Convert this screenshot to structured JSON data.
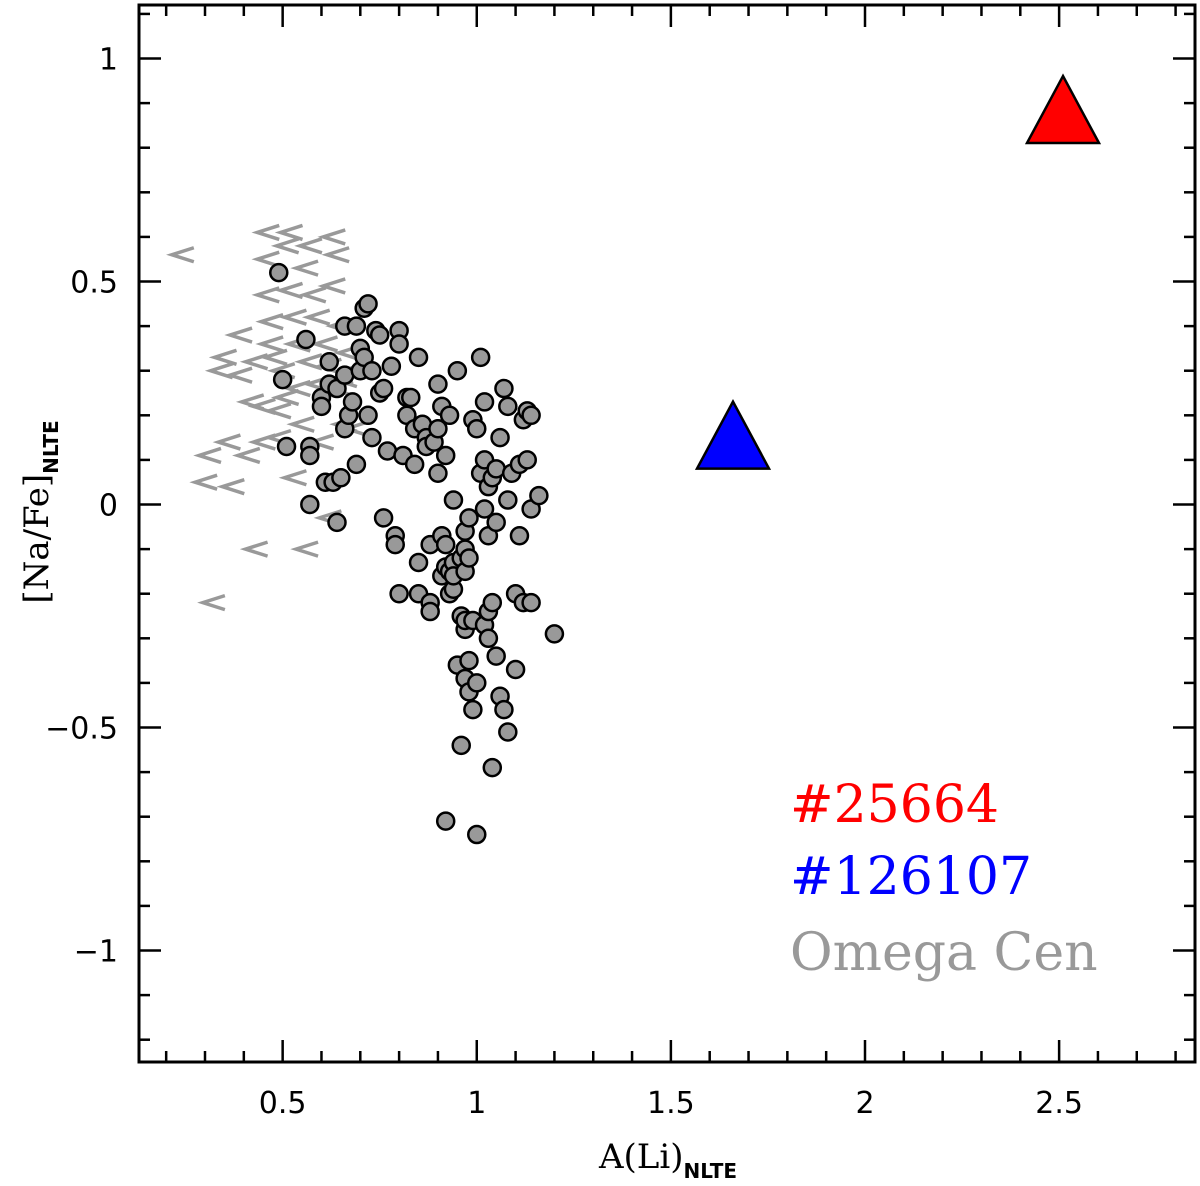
{
  "chart_data": {
    "type": "scatter",
    "title": "",
    "xlabel": "A(Li)",
    "xlabel_subscript": "NLTE",
    "ylabel": "[Na/Fe]",
    "ylabel_subscript": "NLTE",
    "xlim": [
      0.13,
      2.85
    ],
    "ylim": [
      -1.25,
      1.12
    ],
    "x_ticks": [
      0.5,
      1,
      1.5,
      2,
      2.5
    ],
    "x_tick_labels": [
      "0.5",
      "1",
      "1.5",
      "2",
      "2.5"
    ],
    "y_ticks": [
      1,
      0.5,
      0,
      -0.5,
      -1
    ],
    "y_tick_labels": [
      "1",
      "0.5",
      "0",
      "−0.5",
      "−1"
    ],
    "grid": false,
    "legend_placement": "bottom-right",
    "colors": {
      "star_25664": "#ff0000",
      "star_126107": "#0000ff",
      "omega_cen": "#999999",
      "circle_fill": "#999999"
    },
    "series": [
      {
        "name": "Omega Cen",
        "marker": "circle",
        "points": [
          [
            0.49,
            0.52
          ],
          [
            0.5,
            0.28
          ],
          [
            0.51,
            0.13
          ],
          [
            0.56,
            0.37
          ],
          [
            0.57,
            0.13
          ],
          [
            0.57,
            0.11
          ],
          [
            0.57,
            0.0
          ],
          [
            0.6,
            0.24
          ],
          [
            0.6,
            0.22
          ],
          [
            0.61,
            0.05
          ],
          [
            0.62,
            0.32
          ],
          [
            0.62,
            0.27
          ],
          [
            0.63,
            0.05
          ],
          [
            0.64,
            -0.04
          ],
          [
            0.64,
            0.26
          ],
          [
            0.65,
            0.06
          ],
          [
            0.66,
            0.4
          ],
          [
            0.66,
            0.29
          ],
          [
            0.66,
            0.17
          ],
          [
            0.67,
            0.2
          ],
          [
            0.68,
            0.23
          ],
          [
            0.69,
            0.09
          ],
          [
            0.69,
            0.4
          ],
          [
            0.7,
            0.3
          ],
          [
            0.7,
            0.35
          ],
          [
            0.71,
            0.33
          ],
          [
            0.71,
            0.44
          ],
          [
            0.72,
            0.45
          ],
          [
            0.72,
            0.2
          ],
          [
            0.73,
            0.15
          ],
          [
            0.73,
            0.3
          ],
          [
            0.74,
            0.39
          ],
          [
            0.75,
            0.38
          ],
          [
            0.75,
            0.25
          ],
          [
            0.76,
            -0.03
          ],
          [
            0.76,
            0.26
          ],
          [
            0.77,
            0.12
          ],
          [
            0.78,
            0.31
          ],
          [
            0.79,
            -0.07
          ],
          [
            0.79,
            -0.09
          ],
          [
            0.8,
            0.39
          ],
          [
            0.8,
            0.36
          ],
          [
            0.8,
            -0.2
          ],
          [
            0.81,
            0.11
          ],
          [
            0.82,
            0.24
          ],
          [
            0.82,
            0.2
          ],
          [
            0.83,
            0.24
          ],
          [
            0.84,
            0.09
          ],
          [
            0.84,
            0.17
          ],
          [
            0.85,
            -0.13
          ],
          [
            0.85,
            0.33
          ],
          [
            0.85,
            -0.2
          ],
          [
            0.86,
            0.18
          ],
          [
            0.87,
            0.15
          ],
          [
            0.87,
            0.13
          ],
          [
            0.88,
            -0.22
          ],
          [
            0.88,
            -0.24
          ],
          [
            0.88,
            -0.09
          ],
          [
            0.89,
            0.14
          ],
          [
            0.9,
            0.17
          ],
          [
            0.9,
            0.27
          ],
          [
            0.9,
            0.07
          ],
          [
            0.91,
            0.22
          ],
          [
            0.91,
            -0.16
          ],
          [
            0.91,
            -0.07
          ],
          [
            0.92,
            -0.09
          ],
          [
            0.92,
            -0.14
          ],
          [
            0.92,
            0.11
          ],
          [
            0.93,
            0.2
          ],
          [
            0.93,
            -0.15
          ],
          [
            0.93,
            -0.2
          ],
          [
            0.94,
            -0.19
          ],
          [
            0.94,
            0.01
          ],
          [
            0.94,
            -0.13
          ],
          [
            0.94,
            -0.16
          ],
          [
            0.95,
            -0.36
          ],
          [
            0.95,
            0.3
          ],
          [
            0.96,
            -0.54
          ],
          [
            0.96,
            -0.12
          ],
          [
            0.96,
            -0.25
          ],
          [
            0.97,
            -0.39
          ],
          [
            0.97,
            -0.28
          ],
          [
            0.97,
            -0.26
          ],
          [
            0.97,
            -0.1
          ],
          [
            0.97,
            -0.06
          ],
          [
            0.97,
            -0.15
          ],
          [
            0.98,
            -0.42
          ],
          [
            0.98,
            -0.35
          ],
          [
            0.98,
            -0.03
          ],
          [
            0.98,
            -0.12
          ],
          [
            0.99,
            -0.46
          ],
          [
            0.99,
            -0.26
          ],
          [
            0.99,
            0.19
          ],
          [
            1.0,
            0.17
          ],
          [
            1.0,
            -0.4
          ],
          [
            1.01,
            0.07
          ],
          [
            1.01,
            0.33
          ],
          [
            1.02,
            -0.27
          ],
          [
            1.02,
            -0.01
          ],
          [
            1.02,
            0.23
          ],
          [
            1.02,
            0.1
          ],
          [
            1.03,
            -0.07
          ],
          [
            1.03,
            -0.3
          ],
          [
            1.03,
            0.04
          ],
          [
            1.03,
            -0.24
          ],
          [
            1.04,
            -0.59
          ],
          [
            1.04,
            0.06
          ],
          [
            1.04,
            -0.22
          ],
          [
            1.05,
            -0.04
          ],
          [
            1.05,
            -0.34
          ],
          [
            1.05,
            0.08
          ],
          [
            1.06,
            -0.43
          ],
          [
            1.06,
            0.15
          ],
          [
            1.07,
            -0.46
          ],
          [
            1.07,
            0.26
          ],
          [
            1.08,
            0.22
          ],
          [
            1.08,
            -0.51
          ],
          [
            1.08,
            0.01
          ],
          [
            1.09,
            0.07
          ],
          [
            1.1,
            -0.37
          ],
          [
            1.1,
            -0.2
          ],
          [
            1.11,
            0.09
          ],
          [
            1.11,
            -0.07
          ],
          [
            1.12,
            -0.22
          ],
          [
            1.12,
            0.19
          ],
          [
            1.13,
            0.21
          ],
          [
            1.13,
            0.1
          ],
          [
            1.14,
            -0.22
          ],
          [
            1.14,
            0.2
          ],
          [
            1.14,
            -0.01
          ],
          [
            1.16,
            0.02
          ],
          [
            1.2,
            -0.29
          ],
          [
            0.92,
            -0.71
          ],
          [
            1.0,
            -0.74
          ]
        ]
      },
      {
        "name": "Omega Cen (upper limits)",
        "marker": "left-arrow",
        "points": [
          [
            0.23,
            0.56
          ],
          [
            0.31,
            -0.22
          ],
          [
            0.3,
            0.11
          ],
          [
            0.29,
            0.05
          ],
          [
            0.33,
            0.3
          ],
          [
            0.34,
            0.33
          ],
          [
            0.35,
            0.14
          ],
          [
            0.36,
            0.04
          ],
          [
            0.38,
            0.29
          ],
          [
            0.38,
            0.38
          ],
          [
            0.4,
            0.11
          ],
          [
            0.41,
            0.23
          ],
          [
            0.42,
            0.32
          ],
          [
            0.42,
            -0.1
          ],
          [
            0.44,
            0.22
          ],
          [
            0.44,
            0.14
          ],
          [
            0.45,
            0.47
          ],
          [
            0.45,
            0.55
          ],
          [
            0.45,
            0.61
          ],
          [
            0.46,
            0.36
          ],
          [
            0.46,
            0.41
          ],
          [
            0.47,
            0.33
          ],
          [
            0.48,
            0.15
          ],
          [
            0.48,
            0.21
          ],
          [
            0.49,
            0.3
          ],
          [
            0.5,
            0.58
          ],
          [
            0.5,
            0.24
          ],
          [
            0.51,
            0.61
          ],
          [
            0.51,
            0.48
          ],
          [
            0.52,
            0.06
          ],
          [
            0.52,
            0.42
          ],
          [
            0.53,
            0.36
          ],
          [
            0.53,
            0.26
          ],
          [
            0.54,
            0.18
          ],
          [
            0.55,
            -0.1
          ],
          [
            0.55,
            0.53
          ],
          [
            0.56,
            0.58
          ],
          [
            0.56,
            0.32
          ],
          [
            0.57,
            0.47
          ],
          [
            0.58,
            0.27
          ],
          [
            0.58,
            0.42
          ],
          [
            0.59,
            0.14
          ],
          [
            0.6,
            0.36
          ],
          [
            0.61,
            0.31
          ],
          [
            0.61,
            -0.03
          ],
          [
            0.62,
            0.49
          ],
          [
            0.62,
            0.6
          ],
          [
            0.63,
            0.56
          ],
          [
            0.64,
            0.4
          ],
          [
            0.64,
            0.26
          ],
          [
            0.65,
            0.28
          ],
          [
            0.65,
            0.18
          ],
          [
            0.66,
            0.34
          ],
          [
            0.67,
            0.3
          ],
          [
            0.68,
            0.17
          ]
        ]
      },
      {
        "name": "#126107",
        "marker": "triangle",
        "points": [
          [
            1.66,
            0.15
          ]
        ]
      },
      {
        "name": "#25664",
        "marker": "triangle",
        "points": [
          [
            2.51,
            0.88
          ]
        ]
      }
    ],
    "legend": [
      {
        "label": "#25664",
        "color": "#ff0000"
      },
      {
        "label": "#126107",
        "color": "#0000ff"
      },
      {
        "label": "Omega Cen",
        "color": "#999999"
      }
    ]
  }
}
